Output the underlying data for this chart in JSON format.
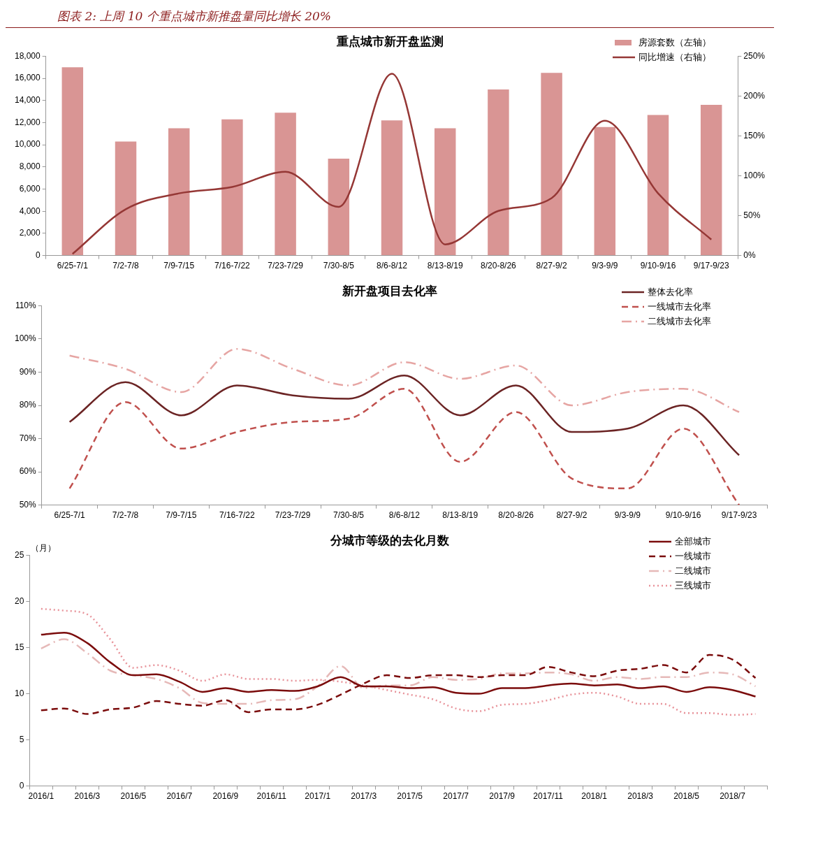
{
  "chart_data": [
    {
      "type": "bar",
      "title": "重点城市新开盘监测",
      "annotations": [
        "图表 2:  上周 10 个重点城市新推盘量同比增长 20%"
      ],
      "categories": [
        "6/25-7/1",
        "7/2-7/8",
        "7/9-7/15",
        "7/16-7/22",
        "7/23-7/29",
        "7/30-8/5",
        "8/6-8/12",
        "8/13-8/19",
        "8/20-8/26",
        "8/27-9/2",
        "9/3-9/9",
        "9/10-9/16",
        "9/17-9/23"
      ],
      "series": [
        {
          "name": "房源套数（左轴）",
          "type": "bar",
          "color": "#d99594",
          "values": [
            17000,
            10300,
            11500,
            12300,
            12900,
            8750,
            12200,
            11500,
            15000,
            16500,
            11600,
            12700,
            13600
          ]
        },
        {
          "name": "同比增速（右轴）",
          "type": "line",
          "axis": "y2",
          "color": "#953735",
          "values": [
            2,
            58,
            78,
            86,
            105,
            61,
            228,
            14,
            56,
            72,
            169,
            78,
            20
          ]
        }
      ],
      "ylim": [
        0,
        18000
      ],
      "yticks": [
        {
          "value": 0,
          "label": "0"
        },
        {
          "value": 2000,
          "label": "2,000"
        },
        {
          "value": 4000,
          "label": "4,000"
        },
        {
          "value": 6000,
          "label": "6,000"
        },
        {
          "value": 8000,
          "label": "8,000"
        },
        {
          "value": 10000,
          "label": "10,000"
        },
        {
          "value": 12000,
          "label": "12,000"
        },
        {
          "value": 14000,
          "label": "14,000"
        },
        {
          "value": 16000,
          "label": "16,000"
        },
        {
          "value": 18000,
          "label": "18,000"
        }
      ],
      "y2lim": [
        0,
        250
      ],
      "y2ticks": [
        {
          "value": 0,
          "label": "0%"
        },
        {
          "value": 50,
          "label": "50%"
        },
        {
          "value": 100,
          "label": "100%"
        },
        {
          "value": 150,
          "label": "150%"
        },
        {
          "value": 200,
          "label": "200%"
        },
        {
          "value": 250,
          "label": "250%"
        }
      ],
      "legend": "top right"
    },
    {
      "type": "line",
      "title": "新开盘项目去化率",
      "categories": [
        "6/25-7/1",
        "7/2-7/8",
        "7/9-7/15",
        "7/16-7/22",
        "7/23-7/29",
        "7/30-8/5",
        "8/6-8/12",
        "8/13-8/19",
        "8/20-8/26",
        "8/27-9/2",
        "9/3-9/9",
        "9/10-9/16",
        "9/17-9/23"
      ],
      "series": [
        {
          "name": "整体去化率",
          "color": "#6b2424",
          "line_style": "solid",
          "values": [
            75,
            87,
            77,
            86,
            83,
            82,
            89,
            77,
            86,
            72,
            73,
            80,
            65
          ]
        },
        {
          "name": "一线城市去化率",
          "color": "#c0504d",
          "line_style": "dashed",
          "values": [
            55,
            81,
            67,
            72,
            75,
            76,
            85,
            63,
            78,
            58,
            55,
            73,
            50
          ]
        },
        {
          "name": "二线城市去化率",
          "color": "#e6a5a3",
          "line_style": "dashdot",
          "values": [
            95,
            91,
            84,
            97,
            91,
            86,
            93,
            88,
            92,
            80,
            84,
            85,
            78
          ]
        }
      ],
      "ylim": [
        50,
        110
      ],
      "yticks": [
        {
          "value": 50,
          "label": "50%"
        },
        {
          "value": 60,
          "label": "60%"
        },
        {
          "value": 70,
          "label": "70%"
        },
        {
          "value": 80,
          "label": "80%"
        },
        {
          "value": 90,
          "label": "90%"
        },
        {
          "value": 100,
          "label": "100%"
        },
        {
          "value": 110,
          "label": "110%"
        }
      ],
      "legend": "top right"
    },
    {
      "type": "line",
      "title": "分城市等级的去化月数",
      "ylabel": "（月）",
      "categories": [
        "2016/1",
        null,
        "2016/3",
        null,
        "2016/5",
        null,
        "2016/7",
        null,
        "2016/9",
        null,
        "2016/11",
        null,
        "2017/1",
        null,
        "2017/3",
        null,
        "2017/5",
        null,
        "2017/7",
        null,
        "2017/9",
        null,
        "2017/11",
        null,
        "2018/1",
        null,
        "2018/3",
        null,
        "2018/5",
        null,
        "2018/7",
        null
      ],
      "series": [
        {
          "name": "全部城市",
          "color": "#7b0c0c",
          "line_style": "solid",
          "values": [
            16.4,
            16.6,
            15.5,
            13.4,
            12.0,
            12.1,
            11.3,
            10.2,
            10.6,
            10.2,
            10.4,
            10.3,
            10.8,
            11.8,
            10.8,
            10.8,
            10.6,
            10.7,
            10.1,
            10.0,
            10.6,
            10.6,
            10.9,
            11.1,
            10.9,
            11.0,
            10.6,
            10.8,
            10.2,
            10.7,
            10.4,
            9.7
          ]
        },
        {
          "name": "一线城市",
          "color": "#7b0c0c",
          "line_style": "dashed",
          "values": [
            8.2,
            8.4,
            7.8,
            8.3,
            8.5,
            9.2,
            8.9,
            8.7,
            9.3,
            8.0,
            8.3,
            8.3,
            8.8,
            9.9,
            11.1,
            12.0,
            11.7,
            12.0,
            12.0,
            11.8,
            12.0,
            12.0,
            12.9,
            12.3,
            11.9,
            12.5,
            12.7,
            13.1,
            12.3,
            14.2,
            13.7,
            11.7
          ]
        },
        {
          "name": "二线城市",
          "color": "#e6b9b8",
          "line_style": "dashdot",
          "values": [
            14.9,
            15.9,
            14.4,
            12.5,
            12.0,
            11.6,
            10.6,
            9.0,
            8.9,
            8.9,
            9.3,
            9.4,
            10.8,
            13.0,
            10.6,
            10.9,
            10.9,
            11.8,
            11.5,
            11.6,
            12.2,
            12.2,
            12.3,
            12.1,
            11.4,
            11.8,
            11.6,
            11.8,
            11.8,
            12.3,
            12.1,
            10.8
          ]
        },
        {
          "name": "三线城市",
          "color": "#e8939a",
          "line_style": "dotted",
          "values": [
            19.2,
            19.0,
            18.6,
            15.9,
            12.8,
            13.1,
            12.5,
            11.4,
            12.1,
            11.6,
            11.6,
            11.4,
            11.5,
            11.3,
            10.9,
            10.4,
            9.9,
            9.4,
            8.4,
            8.1,
            8.8,
            8.9,
            9.3,
            9.9,
            10.1,
            9.7,
            8.9,
            8.9,
            7.9,
            7.9,
            7.7,
            7.8
          ]
        }
      ],
      "ylim": [
        0,
        25
      ],
      "yticks": [
        0,
        5,
        10,
        15,
        20,
        25
      ],
      "legend": "top right"
    }
  ]
}
